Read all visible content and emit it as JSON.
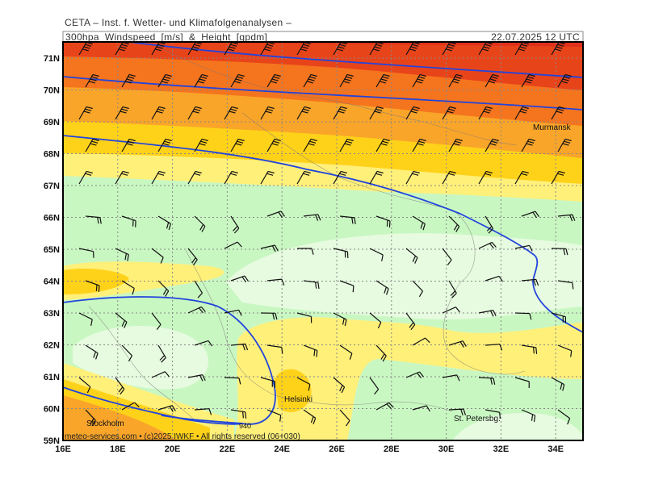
{
  "header": {
    "title": "CETA – Inst. f. Wetter- und Klimafolgenanalysen –",
    "product": "300hpa_Windspeed_[m/s]_&_Height_[gpdm]",
    "datetime": "22.07.2025 12 UTC"
  },
  "map": {
    "lat_labels": [
      "71N",
      "70N",
      "69N",
      "68N",
      "67N",
      "66N",
      "65N",
      "64N",
      "63N",
      "62N",
      "61N",
      "60N",
      "59N"
    ],
    "lon_labels": [
      "16E",
      "18E",
      "20E",
      "22E",
      "24E",
      "26E",
      "28E",
      "30E",
      "32E",
      "34E"
    ],
    "cities": [
      "Murmansk",
      "Helsinki",
      "Stockholm",
      "St. Petersbg."
    ],
    "contour_label": "940"
  },
  "footer": "meteo-services.com • (c)2025 IWKF • All rights reserved (06+030)"
}
